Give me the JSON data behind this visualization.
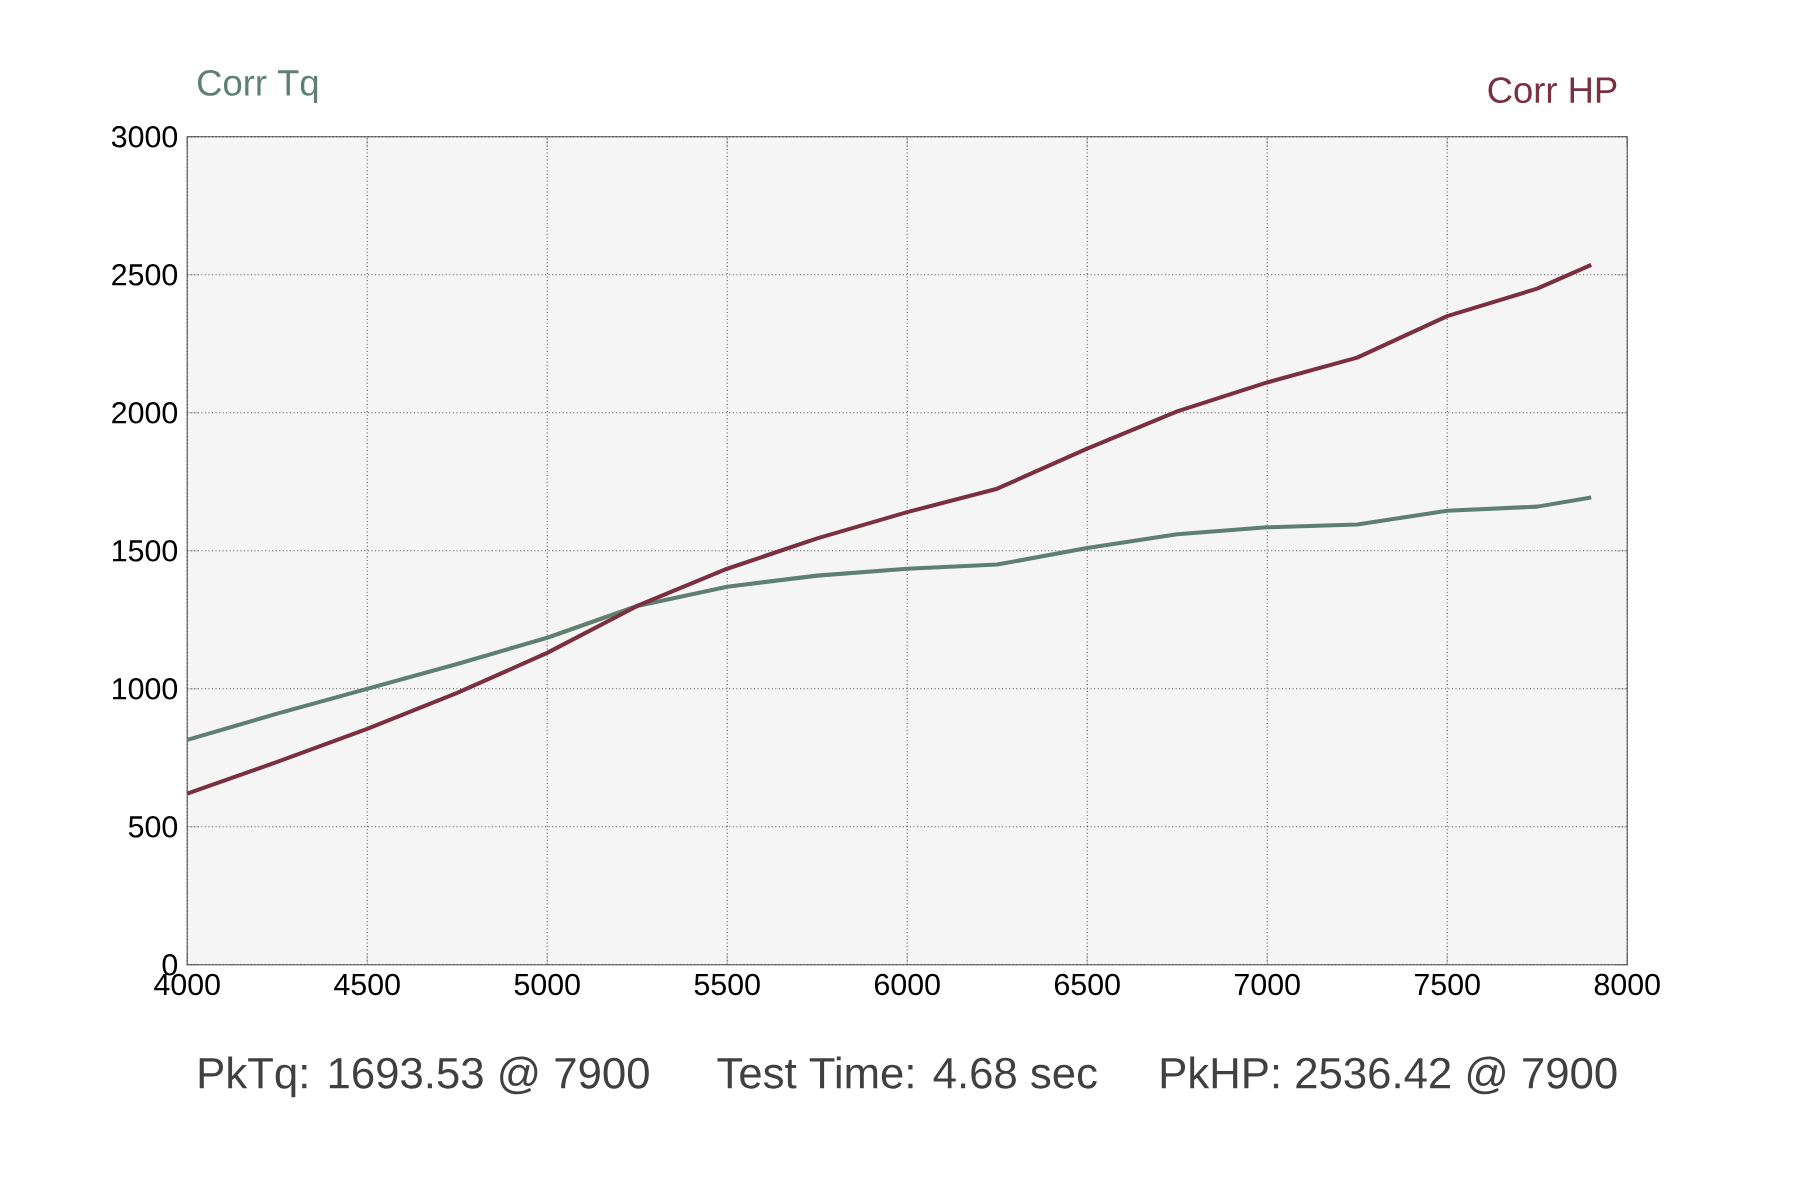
{
  "chart_data": {
    "type": "line",
    "xlim": [
      4000,
      8000
    ],
    "ylim": [
      0,
      3000
    ],
    "xticks": [
      4000,
      4500,
      5000,
      5500,
      6000,
      6500,
      7000,
      7500,
      8000
    ],
    "yticks": [
      0,
      500,
      1000,
      1500,
      2000,
      2500,
      3000
    ],
    "grid": true,
    "marker": "none",
    "line_style": "solid",
    "x": [
      4000,
      4250,
      4500,
      4750,
      5000,
      5250,
      5500,
      5750,
      6000,
      6250,
      6500,
      6750,
      7000,
      7250,
      7500,
      7750,
      7900
    ],
    "series": [
      {
        "name": "Corr Tq",
        "color": "#5f7f72",
        "values": [
          815,
          910,
          1000,
          1090,
          1185,
          1300,
          1370,
          1410,
          1435,
          1450,
          1510,
          1560,
          1585,
          1595,
          1645,
          1660,
          1693
        ]
      },
      {
        "name": "Corr HP",
        "color": "#7a3040",
        "values": [
          620,
          735,
          855,
          985,
          1130,
          1300,
          1435,
          1545,
          1640,
          1725,
          1870,
          2005,
          2110,
          2200,
          2350,
          2450,
          2536
        ]
      }
    ],
    "annotations": [
      "PkTq: 1693.53 @  7900",
      "Test Time: 4.68 sec",
      "PkHP: 2536.42 @  7900"
    ]
  }
}
